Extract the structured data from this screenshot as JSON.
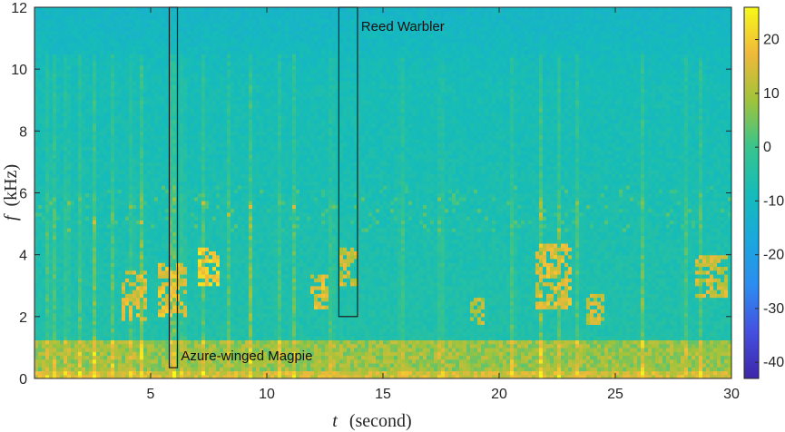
{
  "chart_data": {
    "type": "heatmap",
    "title": "",
    "xlabel_symbol": "t",
    "xlabel_unit": "(second)",
    "ylabel_symbol": "f",
    "ylabel_unit": "(kHz)",
    "xlim": [
      0,
      30
    ],
    "ylim": [
      0,
      12
    ],
    "x_ticks": [
      5,
      10,
      15,
      20,
      25,
      30
    ],
    "y_ticks": [
      0,
      2,
      4,
      6,
      8,
      10,
      12
    ],
    "colorbar": {
      "range": [
        -43,
        26
      ],
      "ticks": [
        20,
        10,
        0,
        -10,
        -20,
        -30,
        -40
      ],
      "colormap": "parula"
    },
    "background_level": -8,
    "low_band": {
      "f_range": [
        0,
        1.2
      ],
      "level": 8
    },
    "energy_clusters": [
      {
        "t": [
          3.8,
          4.8
        ],
        "f": [
          1.9,
          3.5
        ],
        "level": 14
      },
      {
        "t": [
          5.3,
          6.6
        ],
        "f": [
          2.0,
          3.8
        ],
        "level": 15
      },
      {
        "t": [
          7.0,
          7.9
        ],
        "f": [
          3.0,
          4.2
        ],
        "level": 18
      },
      {
        "t": [
          11.8,
          12.6
        ],
        "f": [
          2.2,
          3.4
        ],
        "level": 14
      },
      {
        "t": [
          13.2,
          13.9
        ],
        "f": [
          3.0,
          4.2
        ],
        "level": 12
      },
      {
        "t": [
          21.5,
          23.2
        ],
        "f": [
          2.2,
          4.4
        ],
        "level": 14
      },
      {
        "t": [
          23.8,
          24.6
        ],
        "f": [
          1.8,
          2.8
        ],
        "level": 12
      },
      {
        "t": [
          18.8,
          19.4
        ],
        "f": [
          1.8,
          2.6
        ],
        "level": 10
      },
      {
        "t": [
          28.5,
          29.8
        ],
        "f": [
          2.6,
          4.0
        ],
        "level": 12
      }
    ],
    "vertical_streaks": [
      0.6,
      0.9,
      1.4,
      2.0,
      2.6,
      3.4,
      4.2,
      4.6,
      5.9,
      6.0,
      6.4,
      7.3,
      8.4,
      9.3,
      10.5,
      11.2,
      12.8,
      15.8,
      17.5,
      20.6,
      21.8,
      22.6,
      23.4,
      26.2,
      28.0,
      28.7
    ],
    "annotations": [
      {
        "label": "Azure-winged Magpie",
        "t_range": [
          5.8,
          6.15
        ],
        "f_range": [
          0.35,
          12
        ]
      },
      {
        "label": "Reed Warbler",
        "t_range": [
          13.1,
          13.9
        ],
        "f_range": [
          2.0,
          12
        ]
      }
    ]
  }
}
